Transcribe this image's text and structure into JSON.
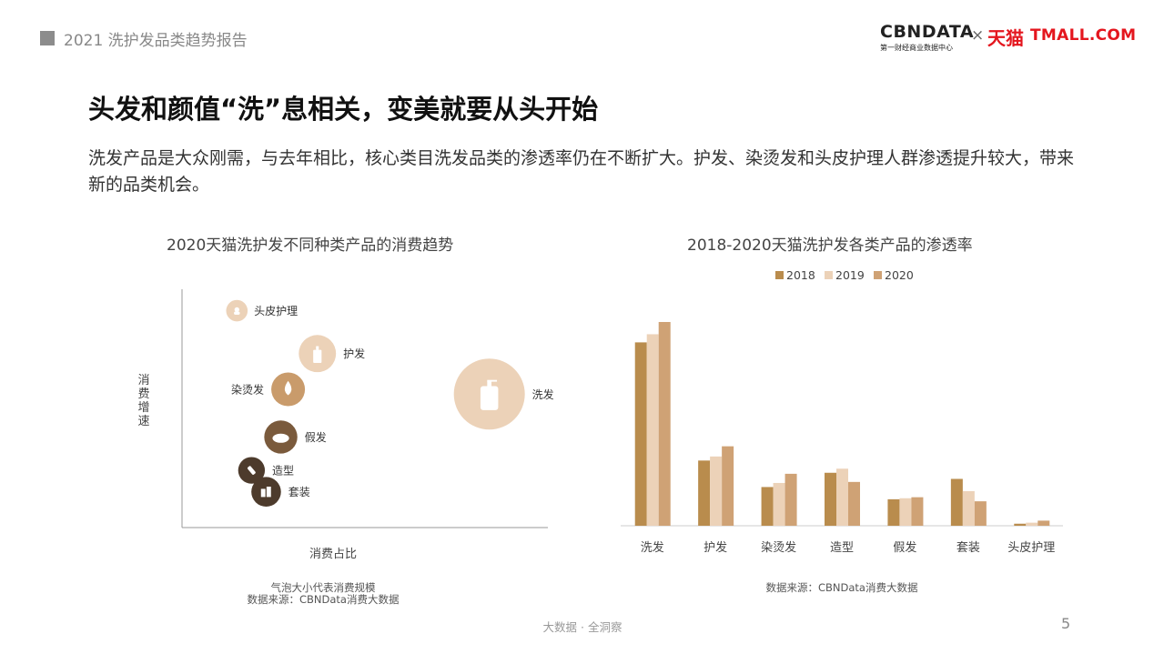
{
  "header": {
    "report_title": "2021 洗护发品类趋势报告",
    "brand_left": "CBNDATA",
    "brand_left_sub": "第一财经商业数据中心",
    "brand_separator": "×",
    "brand_right_cn": "天猫",
    "brand_right_en": "TMALL.COM"
  },
  "headline": "头发和颜值“洗”息相关，变美就要从头开始",
  "intro": "洗发产品是大众刚需，与去年相比，核心类目洗发品类的渗透率仍在不断扩大。护发、染烫发和头皮护理人群渗透提升较大，带来新的品类机会。",
  "colors": {
    "y2018": "#b98c4d",
    "y2019": "#ecd2b8",
    "y2020": "#cfa275",
    "bubble_light": "#ecd2b8",
    "bubble_mid": "#c99b6b",
    "bubble_dark": "#7a5a3c",
    "bubble_darkest": "#4d3b2c"
  },
  "chart_data": [
    {
      "type": "scatter",
      "title": "2020天猫洗护发不同种类产品的消费趋势",
      "xlabel": "消费占比",
      "ylabel": "消费增速",
      "notes": [
        "气泡大小代表消费规模",
        "数据来源：CBNData消费大数据"
      ],
      "xlim": [
        0,
        1
      ],
      "ylim": [
        0,
        1
      ],
      "points": [
        {
          "label": "头皮护理",
          "x": 0.15,
          "y": 0.91,
          "size": 0.15,
          "color": "#ecd2b8",
          "icon": "scalp-care-icon"
        },
        {
          "label": "护发",
          "x": 0.37,
          "y": 0.73,
          "size": 0.42,
          "color": "#ecd2b8",
          "icon": "conditioner-bottle-icon"
        },
        {
          "label": "染烫发",
          "x": 0.29,
          "y": 0.58,
          "size": 0.36,
          "color": "#c99b6b",
          "icon": "dye-drop-icon"
        },
        {
          "label": "洗发",
          "x": 0.84,
          "y": 0.56,
          "size": 1.0,
          "color": "#ecd2b8",
          "icon": "shampoo-pump-icon"
        },
        {
          "label": "假发",
          "x": 0.27,
          "y": 0.38,
          "size": 0.35,
          "color": "#7a5a3c",
          "icon": "wig-icon"
        },
        {
          "label": "造型",
          "x": 0.19,
          "y": 0.24,
          "size": 0.24,
          "color": "#4d3b2c",
          "icon": "styling-spray-icon"
        },
        {
          "label": "套装",
          "x": 0.23,
          "y": 0.15,
          "size": 0.29,
          "color": "#4d3b2c",
          "icon": "set-bottles-icon"
        }
      ]
    },
    {
      "type": "bar",
      "title": "2018-2020天猫洗护发各类产品的渗透率",
      "source": "数据来源：CBNData消费大数据",
      "categories": [
        "洗发",
        "护发",
        "染烫发",
        "造型",
        "假发",
        "套装",
        "头皮护理"
      ],
      "legend_position": "top",
      "ylim": [
        0,
        100
      ],
      "series": [
        {
          "name": "2018",
          "values": [
            90,
            32,
            19,
            26,
            13,
            23,
            1
          ]
        },
        {
          "name": "2019",
          "values": [
            94,
            34,
            21,
            28,
            13.5,
            17,
            1.5
          ]
        },
        {
          "name": "2020",
          "values": [
            100,
            39,
            25.5,
            21.5,
            14,
            12,
            2.5
          ]
        }
      ]
    }
  ],
  "footer": {
    "slogan": "大数据 · 全洞察",
    "page_number": "5"
  }
}
